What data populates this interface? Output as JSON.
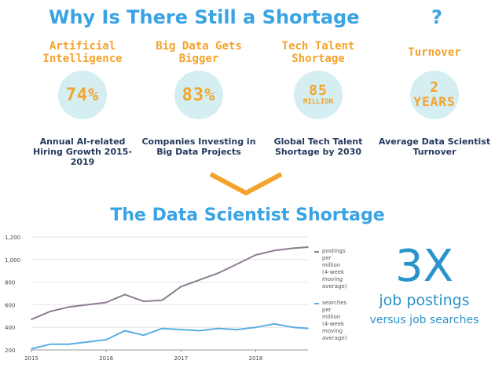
{
  "title": {
    "main": "Why Is There Still a Shortage",
    "question": "?"
  },
  "stats": [
    {
      "heading": "Artificial Intelligence",
      "value": "74%",
      "unit": "",
      "description": "Annual AI-related Hiring Growth 2015-2019"
    },
    {
      "heading": "Big Data Gets Bigger",
      "value": "83%",
      "unit": "",
      "description": "Companies Investing in Big Data Projects"
    },
    {
      "heading": "Tech Talent Shortage",
      "value": "85",
      "unit": "MILLION",
      "description": "Global Tech Talent Shortage by 2030"
    },
    {
      "heading": "Turnover",
      "value": "2",
      "unit": "YEARS",
      "description": "Average Data Scientist Turnover"
    }
  ],
  "section_title": "The Data Scientist Shortage",
  "callout": {
    "big": "3X",
    "line1": "job postings",
    "line2": "versus job searches"
  },
  "colors": {
    "accent_blue": "#3aa3e3",
    "accent_orange": "#f3a32b",
    "postings": "#8c7c90",
    "searches": "#5aaee3"
  },
  "chart_data": {
    "type": "line",
    "x": [
      2015.0,
      2015.25,
      2015.5,
      2015.75,
      2016.0,
      2016.25,
      2016.5,
      2016.75,
      2017.0,
      2017.25,
      2017.5,
      2017.75,
      2018.0,
      2018.25,
      2018.5,
      2018.7
    ],
    "series": [
      {
        "name": "postings per million (4-week moving average)",
        "values": [
          470,
          540,
          580,
          600,
          620,
          690,
          630,
          640,
          760,
          820,
          880,
          960,
          1040,
          1080,
          1100,
          1110
        ]
      },
      {
        "name": "searches per million (4-week moving average)",
        "values": [
          210,
          250,
          250,
          270,
          290,
          370,
          330,
          390,
          380,
          370,
          390,
          380,
          400,
          430,
          400,
          390
        ]
      }
    ],
    "x_ticks": [
      "2015",
      "2016",
      "2017",
      "2018"
    ],
    "y_ticks": [
      "200",
      "400",
      "600",
      "800",
      "1,000",
      "1,200"
    ],
    "xlim": [
      2015,
      2018.7
    ],
    "ylim": [
      200,
      1200
    ],
    "legend": [
      {
        "text": "postings per million (4-week moving average)",
        "lines": [
          "postings",
          "per",
          "million",
          "(4-week",
          "moving",
          "average)"
        ]
      },
      {
        "text": "searches per million (4-week moving average)",
        "lines": [
          "searches",
          "per",
          "million",
          "(4-week",
          "moving",
          "average)"
        ]
      }
    ]
  }
}
